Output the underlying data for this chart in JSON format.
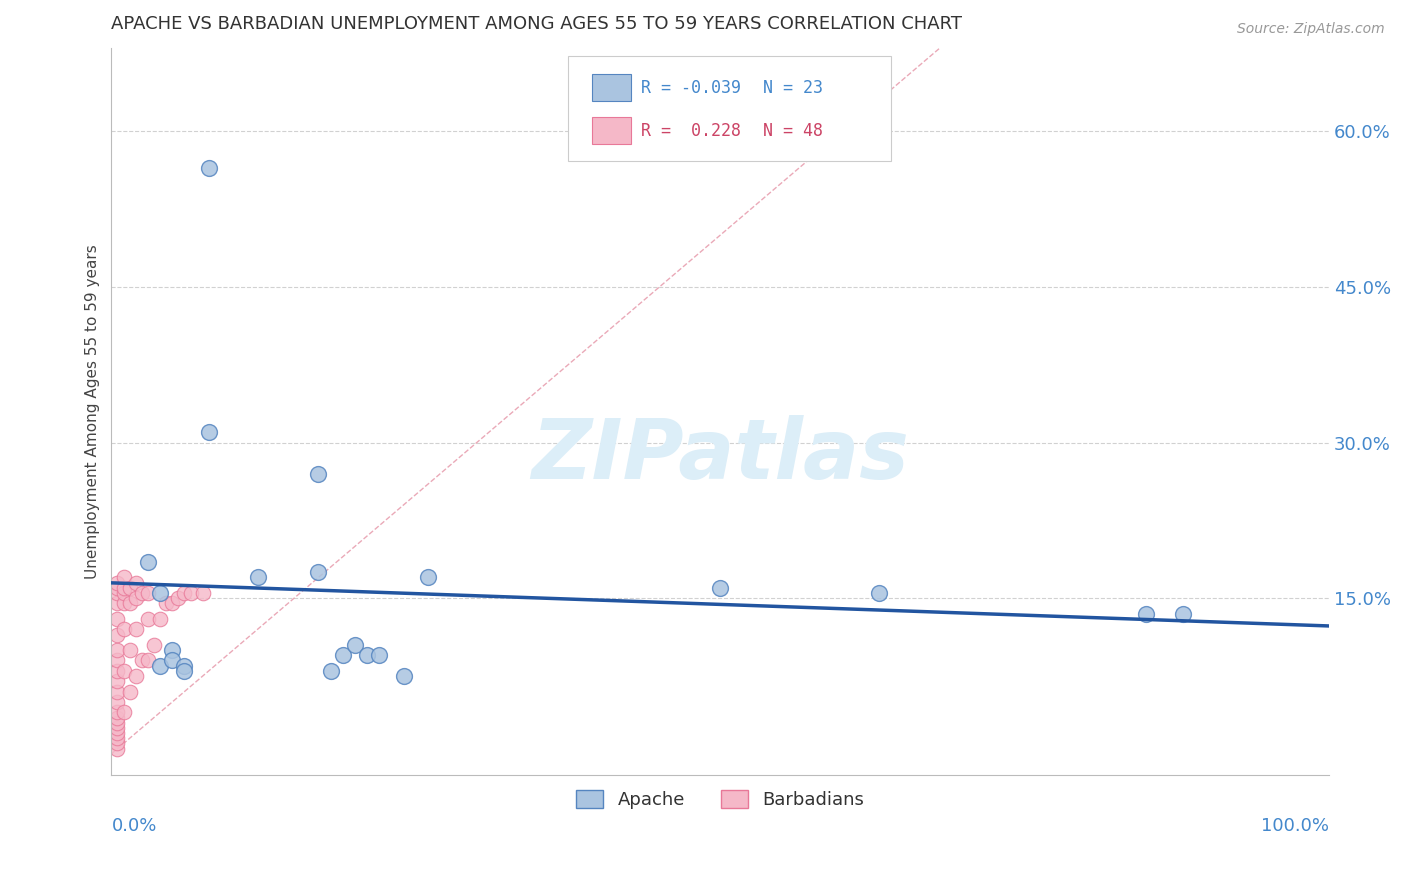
{
  "title": "APACHE VS BARBADIAN UNEMPLOYMENT AMONG AGES 55 TO 59 YEARS CORRELATION CHART",
  "source_text": "Source: ZipAtlas.com",
  "ylabel": "Unemployment Among Ages 55 to 59 years",
  "xlim": [
    0,
    1.0
  ],
  "ylim": [
    -0.02,
    0.68
  ],
  "yticks": [
    0.15,
    0.3,
    0.45,
    0.6
  ],
  "yticklabels": [
    "15.0%",
    "30.0%",
    "45.0%",
    "60.0%"
  ],
  "xtick_left": "0.0%",
  "xtick_right": "100.0%",
  "apache_color": "#aac4e0",
  "barbadian_color": "#f5b8c8",
  "apache_edge_color": "#5585c0",
  "barbadian_edge_color": "#e87898",
  "regression_line_color": "#2255a0",
  "diagonal_line_color": "#e8a0b0",
  "grid_color": "#cccccc",
  "title_color": "#333333",
  "axis_tick_color": "#4488cc",
  "watermark_color": "#dceef8",
  "legend_r_apache": "-0.039",
  "legend_n_apache": "23",
  "legend_r_barbadian": "0.228",
  "legend_n_barbadian": "48",
  "apache_x": [
    0.08,
    0.08,
    0.12,
    0.17,
    0.19,
    0.2,
    0.21,
    0.22,
    0.18,
    0.03,
    0.04,
    0.04,
    0.05,
    0.05,
    0.06,
    0.06,
    0.26,
    0.63,
    0.85,
    0.88,
    0.5,
    0.24,
    0.17
  ],
  "apache_y": [
    0.565,
    0.31,
    0.17,
    0.175,
    0.095,
    0.105,
    0.095,
    0.095,
    0.08,
    0.185,
    0.155,
    0.085,
    0.1,
    0.09,
    0.085,
    0.08,
    0.17,
    0.155,
    0.135,
    0.135,
    0.16,
    0.075,
    0.27
  ],
  "barbadian_x": [
    0.005,
    0.005,
    0.005,
    0.005,
    0.005,
    0.005,
    0.005,
    0.005,
    0.005,
    0.005,
    0.005,
    0.005,
    0.005,
    0.005,
    0.005,
    0.005,
    0.005,
    0.005,
    0.005,
    0.005,
    0.01,
    0.01,
    0.01,
    0.01,
    0.01,
    0.01,
    0.01,
    0.015,
    0.015,
    0.015,
    0.015,
    0.02,
    0.02,
    0.02,
    0.02,
    0.025,
    0.025,
    0.03,
    0.03,
    0.03,
    0.035,
    0.04,
    0.045,
    0.05,
    0.055,
    0.06,
    0.065,
    0.075
  ],
  "barbadian_y": [
    0.005,
    0.01,
    0.015,
    0.02,
    0.025,
    0.03,
    0.035,
    0.04,
    0.05,
    0.06,
    0.07,
    0.08,
    0.09,
    0.1,
    0.115,
    0.13,
    0.145,
    0.155,
    0.16,
    0.165,
    0.04,
    0.08,
    0.12,
    0.145,
    0.155,
    0.16,
    0.17,
    0.06,
    0.1,
    0.145,
    0.16,
    0.075,
    0.12,
    0.15,
    0.165,
    0.09,
    0.155,
    0.09,
    0.13,
    0.155,
    0.105,
    0.13,
    0.145,
    0.145,
    0.15,
    0.155,
    0.155,
    0.155
  ]
}
